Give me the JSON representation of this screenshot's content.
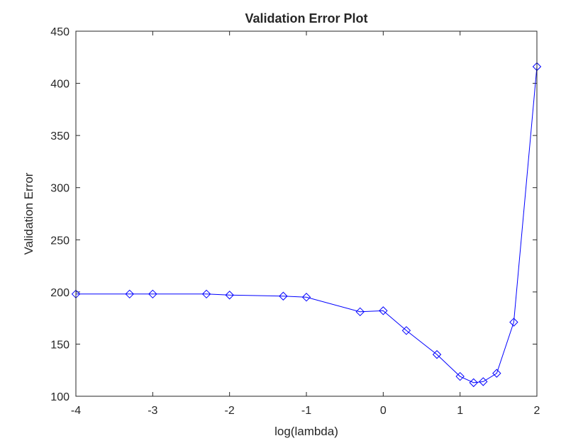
{
  "chart_data": {
    "type": "line",
    "title": "Validation Error Plot",
    "xlabel": "log(lambda)",
    "ylabel": "Validation Error",
    "xlim": [
      -4,
      2
    ],
    "ylim": [
      100,
      450
    ],
    "xticks": [
      -4,
      -3,
      -2,
      -1,
      0,
      1,
      2
    ],
    "yticks": [
      100,
      150,
      200,
      250,
      300,
      350,
      400,
      450
    ],
    "grid": false,
    "legend": "none",
    "line_color": "#0000ff",
    "marker": "diamond",
    "series": [
      {
        "x": [
          -4,
          -3.301,
          -3,
          -2.301,
          -2,
          -1.301,
          -1,
          -0.301,
          0,
          0.301,
          0.699,
          1,
          1.176,
          1.301,
          1.477,
          1.699,
          2
        ],
        "y": [
          198,
          198,
          198,
          198,
          197,
          196,
          195,
          181,
          182,
          163,
          140,
          119,
          113,
          114,
          122,
          171,
          416
        ]
      }
    ]
  }
}
